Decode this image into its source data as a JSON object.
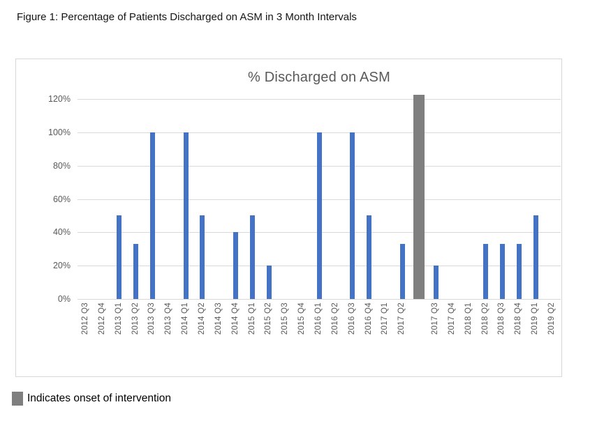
{
  "figure": {
    "caption": "Figure 1: Percentage of Patients Discharged on ASM in 3 Month Intervals"
  },
  "legend": {
    "swatch_color": "#7f7f7f",
    "label": "Indicates onset of intervention"
  },
  "colors": {
    "bar_blue": "#4472C4",
    "intervention_gray": "#7f7f7f",
    "axis_text": "#595959",
    "gridline": "#d9d9d9",
    "chart_border": "#d7d7d7"
  },
  "chart_data": {
    "type": "bar",
    "title": "% Discharged on ASM",
    "xlabel": "",
    "ylabel": "",
    "categories": [
      "2012 Q3",
      "2012 Q4",
      "2013 Q1",
      "2013 Q2",
      "2013 Q3",
      "2013 Q4",
      "2014 Q1",
      "2014 Q2",
      "2014 Q3",
      "2014 Q4",
      "2015 Q1",
      "2015 Q2",
      "2015 Q3",
      "2015 Q4",
      "2016 Q1",
      "2016 Q2",
      "2016 Q3",
      "2016 Q4",
      "2017 Q1",
      "2017 Q2",
      "2017 Q3",
      "2017 Q4",
      "2018 Q1",
      "2018 Q2",
      "2018 Q3",
      "2018 Q4",
      "2019 Q1",
      "2019 Q2"
    ],
    "values": [
      0,
      0,
      50,
      33,
      100,
      0,
      100,
      50,
      0,
      40,
      50,
      20,
      0,
      0,
      100,
      0,
      100,
      50,
      0,
      33,
      20,
      0,
      0,
      33,
      33,
      33,
      50,
      0
    ],
    "unit": "%",
    "ylim": [
      0,
      120
    ],
    "ytick_labels": [
      "0%",
      "20%",
      "40%",
      "60%",
      "80%",
      "100%",
      "120%"
    ],
    "grid": true,
    "bar_color": "#4472C4",
    "intervention_marker": {
      "between": [
        "2017 Q2",
        "2017 Q3"
      ],
      "insert_after_index": 19,
      "bar_color": "#7f7f7f",
      "extends_above_axis_max": true,
      "display_value": 122.5,
      "meaning": "Indicates onset of intervention"
    }
  }
}
